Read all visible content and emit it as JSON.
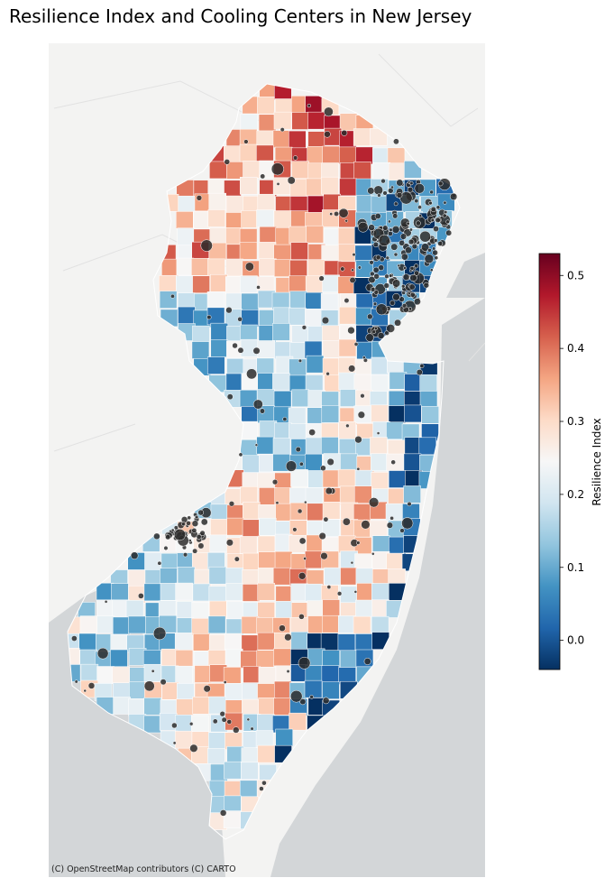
{
  "title": "Resilience Index and Cooling Centers in New Jersey",
  "attribution": "(C) OpenStreetMap contributors (C) CARTO",
  "basemap": "CARTO light (Positron)",
  "legend": {
    "label": "Resilience Index",
    "colormap": "RdBu_r",
    "min": -0.04,
    "max": 0.53,
    "ticks": [
      {
        "value": 0.0,
        "label": "0.0"
      },
      {
        "value": 0.1,
        "label": "0.1"
      },
      {
        "value": 0.2,
        "label": "0.2"
      },
      {
        "value": 0.3,
        "label": "0.3"
      },
      {
        "value": 0.4,
        "label": "0.4"
      },
      {
        "value": 0.5,
        "label": "0.5"
      }
    ],
    "stops": [
      "#053061",
      "#2166ac",
      "#4393c3",
      "#92c5de",
      "#d1e5f0",
      "#f7f7f7",
      "#fddbc7",
      "#f4a582",
      "#d6604d",
      "#b2182b",
      "#67001f"
    ]
  },
  "colors": {
    "water": "#d3d6d8",
    "land": "#f3f3f2",
    "border": "#ffffff",
    "markers": "#2b2b2b"
  },
  "markers_label": "Cooling Centers"
}
